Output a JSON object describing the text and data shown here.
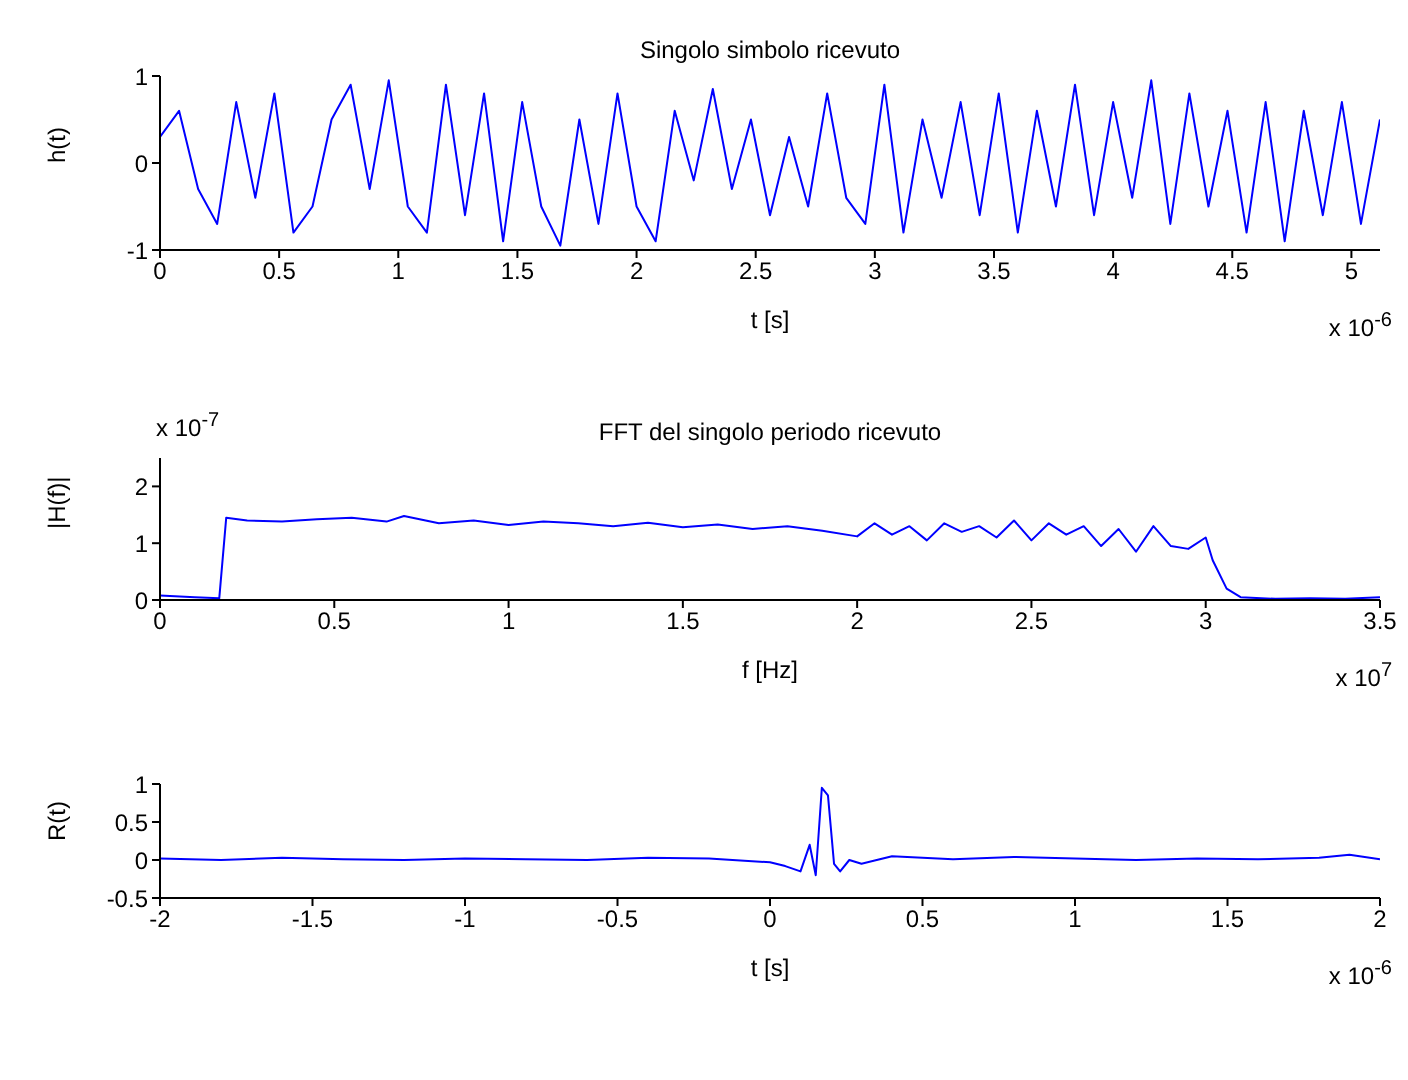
{
  "chart_data": [
    {
      "type": "line",
      "title": "Singolo simbolo ricevuto",
      "xlabel": "t [s]",
      "ylabel": "h(t)",
      "annotations": [
        "x 10$^{-6}$"
      ],
      "color": "#0000ff",
      "xlim": [
        0,
        5.12
      ],
      "ylim": [
        -1,
        1
      ],
      "xticks": [
        0,
        0.5,
        1,
        1.5,
        2,
        2.5,
        3,
        3.5,
        4,
        4.5,
        5
      ],
      "yticks": [
        -1,
        0,
        1
      ],
      "x": [
        0,
        0.08,
        0.16,
        0.24,
        0.32,
        0.4,
        0.48,
        0.56,
        0.64,
        0.72,
        0.8,
        0.88,
        0.96,
        1.04,
        1.12,
        1.2,
        1.28,
        1.36,
        1.44,
        1.52,
        1.6,
        1.68,
        1.76,
        1.84,
        1.92,
        2,
        2.08,
        2.16,
        2.24,
        2.32,
        2.4,
        2.48,
        2.56,
        2.64,
        2.72,
        2.8,
        2.88,
        2.96,
        3.04,
        3.12,
        3.2,
        3.28,
        3.36,
        3.44,
        3.52,
        3.6,
        3.68,
        3.76,
        3.84,
        3.92,
        4,
        4.08,
        4.16,
        4.24,
        4.32,
        4.4,
        4.48,
        4.56,
        4.64,
        4.72,
        4.8,
        4.88,
        4.96,
        5.04,
        5.12
      ],
      "values": [
        0.3,
        0.6,
        -0.3,
        -0.7,
        0.7,
        -0.4,
        0.8,
        -0.8,
        -0.5,
        0.5,
        0.9,
        -0.3,
        0.95,
        -0.5,
        -0.8,
        0.9,
        -0.6,
        0.8,
        -0.9,
        0.7,
        -0.5,
        -0.95,
        0.5,
        -0.7,
        0.8,
        -0.5,
        -0.9,
        0.6,
        -0.2,
        0.85,
        -0.3,
        0.5,
        -0.6,
        0.3,
        -0.5,
        0.8,
        -0.4,
        -0.7,
        0.9,
        -0.8,
        0.5,
        -0.4,
        0.7,
        -0.6,
        0.8,
        -0.8,
        0.6,
        -0.5,
        0.9,
        -0.6,
        0.7,
        -0.4,
        0.95,
        -0.7,
        0.8,
        -0.5,
        0.6,
        -0.8,
        0.7,
        -0.9,
        0.6,
        -0.6,
        0.7,
        -0.7,
        0.5
      ]
    },
    {
      "type": "line",
      "title": "FFT del singolo periodo ricevuto",
      "xlabel": "f [Hz]",
      "ylabel": "|H(f)|",
      "annotations": [
        "x 10$^{-7}$",
        "x 10$^{7}$"
      ],
      "color": "#0000ff",
      "xlim": [
        0,
        3.5
      ],
      "ylim": [
        0,
        2.5
      ],
      "xticks": [
        0,
        0.5,
        1,
        1.5,
        2,
        2.5,
        3,
        3.5
      ],
      "yticks": [
        0,
        1,
        2
      ],
      "x": [
        0,
        0.1,
        0.17,
        0.19,
        0.25,
        0.35,
        0.45,
        0.55,
        0.65,
        0.7,
        0.8,
        0.9,
        1,
        1.1,
        1.2,
        1.3,
        1.4,
        1.5,
        1.6,
        1.7,
        1.8,
        1.9,
        2,
        2.05,
        2.1,
        2.15,
        2.2,
        2.25,
        2.3,
        2.35,
        2.4,
        2.45,
        2.5,
        2.55,
        2.6,
        2.65,
        2.7,
        2.75,
        2.8,
        2.85,
        2.9,
        2.95,
        3,
        3.02,
        3.06,
        3.1,
        3.2,
        3.3,
        3.4,
        3.5
      ],
      "values": [
        0.08,
        0.05,
        0.03,
        1.45,
        1.4,
        1.38,
        1.42,
        1.45,
        1.38,
        1.48,
        1.35,
        1.4,
        1.32,
        1.38,
        1.35,
        1.3,
        1.36,
        1.28,
        1.33,
        1.25,
        1.3,
        1.22,
        1.12,
        1.35,
        1.15,
        1.3,
        1.05,
        1.35,
        1.2,
        1.3,
        1.1,
        1.4,
        1.05,
        1.35,
        1.15,
        1.3,
        0.95,
        1.25,
        0.85,
        1.3,
        0.95,
        0.9,
        1.1,
        0.7,
        0.2,
        0.05,
        0.02,
        0.03,
        0.02,
        0.05
      ]
    },
    {
      "type": "line",
      "xlabel": "t [s]",
      "ylabel": "R(t)",
      "annotations": [
        "x 10$^{-6}$"
      ],
      "color": "#0000ff",
      "xlim": [
        -2,
        2
      ],
      "ylim": [
        -0.5,
        1
      ],
      "xticks": [
        -2,
        -1.5,
        -1,
        -0.5,
        0,
        0.5,
        1,
        1.5,
        2
      ],
      "yticks": [
        -0.5,
        0,
        0.5,
        1
      ],
      "x": [
        -2,
        -1.8,
        -1.6,
        -1.4,
        -1.2,
        -1,
        -0.8,
        -0.6,
        -0.4,
        -0.2,
        0,
        0.05,
        0.1,
        0.13,
        0.15,
        0.17,
        0.19,
        0.21,
        0.23,
        0.26,
        0.3,
        0.4,
        0.6,
        0.8,
        1,
        1.2,
        1.4,
        1.6,
        1.8,
        1.9,
        2
      ],
      "values": [
        0.02,
        0,
        0.03,
        0.01,
        0,
        0.02,
        0.01,
        0,
        0.03,
        0.02,
        -0.03,
        -0.08,
        -0.15,
        0.2,
        -0.2,
        0.95,
        0.85,
        -0.05,
        -0.15,
        0,
        -0.05,
        0.05,
        0.01,
        0.04,
        0.02,
        0,
        0.02,
        0.01,
        0.03,
        0.07,
        0.01
      ]
    }
  ]
}
